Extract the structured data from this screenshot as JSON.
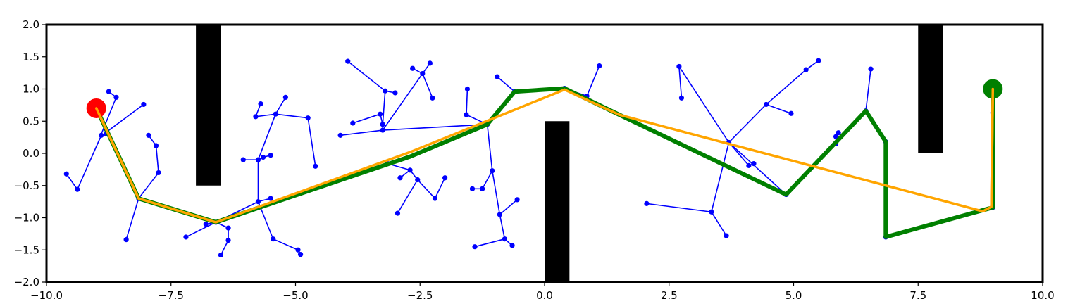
{
  "chart_data": {
    "type": "scatter",
    "title": "",
    "xlabel": "",
    "ylabel": "",
    "xlim": [
      -10,
      10
    ],
    "ylim": [
      -2,
      2
    ],
    "grid": false,
    "x_ticks": [
      "−10.0",
      "−7.5",
      "−5.0",
      "−2.5",
      "0.0",
      "2.5",
      "5.0",
      "7.5",
      "10.0"
    ],
    "x_tick_values": [
      -10,
      -7.5,
      -5,
      -2.5,
      0,
      2.5,
      5,
      7.5,
      10
    ],
    "y_ticks": [
      "2.0",
      "1.5",
      "1.0",
      "0.5",
      "0.0",
      "−0.5",
      "−1.0",
      "−1.5",
      "−2.0"
    ],
    "y_tick_values": [
      2,
      1.5,
      1,
      0.5,
      0,
      -0.5,
      -1,
      -1.5,
      -2
    ],
    "obstacles": [
      {
        "x": [
          -7.0,
          -6.5
        ],
        "y": [
          -0.5,
          2.0
        ]
      },
      {
        "x": [
          0.0,
          0.5
        ],
        "y": [
          -2.0,
          0.5
        ]
      },
      {
        "x": [
          7.5,
          8.0
        ],
        "y": [
          0.0,
          2.0
        ]
      }
    ],
    "start": {
      "x": -9.0,
      "y": 0.7,
      "color": "#ff0000"
    },
    "goal": {
      "x": 9.0,
      "y": 1.0,
      "color": "#008000"
    },
    "tree": {
      "color": "#0000ff",
      "edges": [
        [
          [
            -9.0,
            0.7
          ],
          [
            -8.8,
            0.3
          ]
        ],
        [
          [
            -9.0,
            0.7
          ],
          [
            -8.15,
            -0.7
          ]
        ],
        [
          [
            -8.85,
            0.3
          ],
          [
            -8.05,
            0.76
          ]
        ],
        [
          [
            -8.85,
            0.3
          ],
          [
            -8.9,
            0.28
          ]
        ],
        [
          [
            -8.9,
            0.28
          ],
          [
            -9.38,
            -0.56
          ]
        ],
        [
          [
            -9.38,
            -0.56
          ],
          [
            -9.6,
            -0.32
          ]
        ],
        [
          [
            -8.9,
            0.3
          ],
          [
            -8.6,
            0.87
          ]
        ],
        [
          [
            -8.6,
            0.87
          ],
          [
            -8.75,
            0.96
          ]
        ],
        [
          [
            -8.15,
            -0.7
          ],
          [
            -7.75,
            -0.3
          ]
        ],
        [
          [
            -7.75,
            -0.3
          ],
          [
            -7.8,
            0.12
          ]
        ],
        [
          [
            -7.8,
            0.12
          ],
          [
            -7.95,
            0.28
          ]
        ],
        [
          [
            -8.15,
            -0.7
          ],
          [
            -8.4,
            -1.34
          ]
        ],
        [
          [
            -8.15,
            -0.7
          ],
          [
            -6.6,
            -1.07
          ]
        ],
        [
          [
            -6.6,
            -1.07
          ],
          [
            -6.8,
            -1.1
          ]
        ],
        [
          [
            -6.6,
            -1.07
          ],
          [
            -7.2,
            -1.3
          ]
        ],
        [
          [
            -6.6,
            -1.07
          ],
          [
            -6.35,
            -1.16
          ]
        ],
        [
          [
            -6.35,
            -1.16
          ],
          [
            -6.35,
            -1.35
          ]
        ],
        [
          [
            -6.35,
            -1.35
          ],
          [
            -6.5,
            -1.58
          ]
        ],
        [
          [
            -6.6,
            -1.07
          ],
          [
            -5.75,
            -0.75
          ]
        ],
        [
          [
            -5.75,
            -0.75
          ],
          [
            -5.75,
            -0.1
          ]
        ],
        [
          [
            -5.75,
            -0.1
          ],
          [
            -6.05,
            -0.1
          ]
        ],
        [
          [
            -5.75,
            -0.1
          ],
          [
            -5.65,
            -0.06
          ]
        ],
        [
          [
            -5.65,
            -0.06
          ],
          [
            -5.5,
            -0.03
          ]
        ],
        [
          [
            -5.75,
            -0.75
          ],
          [
            -5.45,
            -1.33
          ]
        ],
        [
          [
            -5.45,
            -1.33
          ],
          [
            -4.95,
            -1.5
          ]
        ],
        [
          [
            -4.95,
            -1.5
          ],
          [
            -4.9,
            -1.57
          ]
        ],
        [
          [
            -5.75,
            -0.75
          ],
          [
            -5.5,
            -0.7
          ]
        ],
        [
          [
            -5.75,
            -0.1
          ],
          [
            -5.4,
            0.61
          ]
        ],
        [
          [
            -5.4,
            0.61
          ],
          [
            -5.8,
            0.57
          ]
        ],
        [
          [
            -5.8,
            0.57
          ],
          [
            -5.7,
            0.77
          ]
        ],
        [
          [
            -5.4,
            0.61
          ],
          [
            -5.2,
            0.87
          ]
        ],
        [
          [
            -5.4,
            0.61
          ],
          [
            -4.75,
            0.55
          ]
        ],
        [
          [
            -4.75,
            0.55
          ],
          [
            -4.6,
            -0.2
          ]
        ],
        [
          [
            -3.25,
            0.36
          ],
          [
            -4.1,
            0.28
          ]
        ],
        [
          [
            -3.25,
            0.36
          ],
          [
            -3.25,
            0.45
          ]
        ],
        [
          [
            -3.25,
            0.45
          ],
          [
            -3.3,
            0.61
          ]
        ],
        [
          [
            -3.3,
            0.61
          ],
          [
            -3.85,
            0.47
          ]
        ],
        [
          [
            -3.25,
            0.45
          ],
          [
            -3.2,
            0.97
          ]
        ],
        [
          [
            -3.2,
            0.97
          ],
          [
            -3.95,
            1.43
          ]
        ],
        [
          [
            -3.2,
            0.97
          ],
          [
            -3.0,
            0.94
          ]
        ],
        [
          [
            -3.25,
            0.36
          ],
          [
            -2.45,
            1.24
          ]
        ],
        [
          [
            -2.45,
            1.24
          ],
          [
            -2.65,
            1.32
          ]
        ],
        [
          [
            -2.45,
            1.24
          ],
          [
            -2.3,
            1.4
          ]
        ],
        [
          [
            -2.45,
            1.24
          ],
          [
            -2.25,
            0.86
          ]
        ],
        [
          [
            -3.25,
            0.36
          ],
          [
            -1.15,
            0.45
          ]
        ],
        [
          [
            -1.15,
            0.45
          ],
          [
            -1.57,
            0.6
          ]
        ],
        [
          [
            -1.57,
            0.6
          ],
          [
            -1.55,
            1.0
          ]
        ],
        [
          [
            -1.15,
            0.45
          ],
          [
            -1.05,
            -0.27
          ]
        ],
        [
          [
            -1.05,
            -0.27
          ],
          [
            -1.25,
            -0.55
          ]
        ],
        [
          [
            -1.25,
            -0.55
          ],
          [
            -1.45,
            -0.55
          ]
        ],
        [
          [
            -1.05,
            -0.27
          ],
          [
            -0.9,
            -0.95
          ]
        ],
        [
          [
            -0.9,
            -0.95
          ],
          [
            -0.55,
            -0.72
          ]
        ],
        [
          [
            -0.9,
            -0.95
          ],
          [
            -0.8,
            -1.33
          ]
        ],
        [
          [
            -0.8,
            -1.33
          ],
          [
            -0.65,
            -1.43
          ]
        ],
        [
          [
            -0.8,
            -1.33
          ],
          [
            -1.4,
            -1.45
          ]
        ],
        [
          [
            -0.6,
            0.96
          ],
          [
            -0.95,
            1.19
          ]
        ],
        [
          [
            -2.7,
            -0.26
          ],
          [
            -3.15,
            -0.16
          ]
        ],
        [
          [
            -2.7,
            -0.26
          ],
          [
            -2.9,
            -0.38
          ]
        ],
        [
          [
            -2.7,
            -0.26
          ],
          [
            -2.55,
            -0.41
          ]
        ],
        [
          [
            -2.55,
            -0.41
          ],
          [
            -2.95,
            -0.93
          ]
        ],
        [
          [
            -2.55,
            -0.41
          ],
          [
            -2.2,
            -0.7
          ]
        ],
        [
          [
            -2.2,
            -0.7
          ],
          [
            -2.0,
            -0.38
          ]
        ],
        [
          [
            0.4,
            1.01
          ],
          [
            0.85,
            0.89
          ]
        ],
        [
          [
            0.85,
            0.89
          ],
          [
            1.1,
            1.36
          ]
        ],
        [
          [
            4.85,
            -0.64
          ],
          [
            3.7,
            0.17
          ]
        ],
        [
          [
            3.7,
            0.17
          ],
          [
            2.7,
            1.35
          ]
        ],
        [
          [
            2.7,
            1.35
          ],
          [
            2.75,
            0.86
          ]
        ],
        [
          [
            3.7,
            0.17
          ],
          [
            4.1,
            -0.19
          ]
        ],
        [
          [
            4.1,
            -0.19
          ],
          [
            4.2,
            -0.16
          ]
        ],
        [
          [
            3.7,
            0.17
          ],
          [
            4.45,
            0.76
          ]
        ],
        [
          [
            4.45,
            0.76
          ],
          [
            4.95,
            0.62
          ]
        ],
        [
          [
            4.45,
            0.76
          ],
          [
            5.25,
            1.3
          ]
        ],
        [
          [
            5.25,
            1.3
          ],
          [
            5.5,
            1.44
          ]
        ],
        [
          [
            3.7,
            0.17
          ],
          [
            3.35,
            -0.91
          ]
        ],
        [
          [
            3.35,
            -0.91
          ],
          [
            2.05,
            -0.78
          ]
        ],
        [
          [
            3.35,
            -0.91
          ],
          [
            3.65,
            -1.28
          ]
        ],
        [
          [
            6.45,
            0.66
          ],
          [
            5.85,
            0.15
          ]
        ],
        [
          [
            5.85,
            0.15
          ],
          [
            5.85,
            0.26
          ]
        ],
        [
          [
            5.85,
            0.26
          ],
          [
            5.9,
            0.32
          ]
        ],
        [
          [
            6.45,
            0.66
          ],
          [
            6.55,
            1.31
          ]
        ],
        [
          [
            9.0,
            -0.84
          ],
          [
            9.0,
            0.63
          ]
        ]
      ],
      "nodes": [
        [
          -8.8,
          0.3
        ],
        [
          -8.9,
          0.28
        ],
        [
          -8.05,
          0.76
        ],
        [
          -9.38,
          -0.56
        ],
        [
          -9.6,
          -0.32
        ],
        [
          -8.6,
          0.87
        ],
        [
          -8.75,
          0.96
        ],
        [
          -8.15,
          -0.7
        ],
        [
          -7.75,
          -0.3
        ],
        [
          -7.8,
          0.12
        ],
        [
          -7.95,
          0.28
        ],
        [
          -8.4,
          -1.34
        ],
        [
          -6.6,
          -1.07
        ],
        [
          -6.8,
          -1.1
        ],
        [
          -7.2,
          -1.3
        ],
        [
          -6.35,
          -1.16
        ],
        [
          -6.35,
          -1.35
        ],
        [
          -6.5,
          -1.58
        ],
        [
          -5.75,
          -0.75
        ],
        [
          -5.75,
          -0.1
        ],
        [
          -6.05,
          -0.1
        ],
        [
          -5.65,
          -0.06
        ],
        [
          -5.5,
          -0.03
        ],
        [
          -5.45,
          -1.33
        ],
        [
          -4.95,
          -1.5
        ],
        [
          -4.9,
          -1.57
        ],
        [
          -5.5,
          -0.7
        ],
        [
          -5.4,
          0.61
        ],
        [
          -5.8,
          0.57
        ],
        [
          -5.7,
          0.77
        ],
        [
          -5.2,
          0.87
        ],
        [
          -4.75,
          0.55
        ],
        [
          -4.6,
          -0.2
        ],
        [
          -4.1,
          0.28
        ],
        [
          -3.25,
          0.36
        ],
        [
          -3.25,
          0.45
        ],
        [
          -3.3,
          0.61
        ],
        [
          -3.85,
          0.47
        ],
        [
          -3.2,
          0.97
        ],
        [
          -3.95,
          1.43
        ],
        [
          -3.0,
          0.94
        ],
        [
          -2.45,
          1.24
        ],
        [
          -2.65,
          1.32
        ],
        [
          -2.3,
          1.4
        ],
        [
          -2.25,
          0.86
        ],
        [
          -1.15,
          0.45
        ],
        [
          -1.57,
          0.6
        ],
        [
          -1.55,
          1.0
        ],
        [
          -1.05,
          -0.27
        ],
        [
          -1.25,
          -0.55
        ],
        [
          -1.45,
          -0.55
        ],
        [
          -0.9,
          -0.95
        ],
        [
          -0.55,
          -0.72
        ],
        [
          -0.8,
          -1.33
        ],
        [
          -0.65,
          -1.43
        ],
        [
          -1.4,
          -1.45
        ],
        [
          -0.6,
          0.96
        ],
        [
          -0.95,
          1.19
        ],
        [
          -2.7,
          -0.26
        ],
        [
          -3.15,
          -0.16
        ],
        [
          -2.9,
          -0.38
        ],
        [
          -2.55,
          -0.41
        ],
        [
          -2.95,
          -0.93
        ],
        [
          -2.2,
          -0.7
        ],
        [
          -2.0,
          -0.38
        ],
        [
          0.4,
          1.01
        ],
        [
          0.85,
          0.89
        ],
        [
          1.1,
          1.36
        ],
        [
          4.85,
          -0.64
        ],
        [
          3.7,
          0.17
        ],
        [
          2.7,
          1.35
        ],
        [
          2.75,
          0.86
        ],
        [
          4.1,
          -0.19
        ],
        [
          4.2,
          -0.16
        ],
        [
          4.45,
          0.76
        ],
        [
          4.95,
          0.62
        ],
        [
          5.25,
          1.3
        ],
        [
          5.5,
          1.44
        ],
        [
          3.35,
          -0.91
        ],
        [
          2.05,
          -0.78
        ],
        [
          3.65,
          -1.28
        ],
        [
          6.45,
          0.66
        ],
        [
          5.85,
          0.15
        ],
        [
          5.85,
          0.26
        ],
        [
          5.9,
          0.32
        ],
        [
          6.55,
          1.31
        ],
        [
          6.85,
          0.18
        ],
        [
          6.85,
          -1.3
        ],
        [
          9.0,
          -0.84
        ],
        [
          9.0,
          0.63
        ]
      ]
    },
    "path": {
      "color": "#008000",
      "points": [
        [
          -9.0,
          0.7
        ],
        [
          -8.15,
          -0.7
        ],
        [
          -6.6,
          -1.07
        ],
        [
          -2.7,
          -0.05
        ],
        [
          -1.15,
          0.45
        ],
        [
          -0.6,
          0.96
        ],
        [
          0.4,
          1.01
        ],
        [
          1.5,
          0.6
        ],
        [
          4.85,
          -0.64
        ],
        [
          6.45,
          0.66
        ],
        [
          6.85,
          0.18
        ],
        [
          6.85,
          -1.3
        ],
        [
          9.0,
          -0.84
        ],
        [
          9.0,
          1.0
        ]
      ]
    },
    "smoothed_path": {
      "color": "#ffa500",
      "points": [
        [
          -9.0,
          0.7
        ],
        [
          -8.15,
          -0.7
        ],
        [
          -6.6,
          -1.07
        ],
        [
          -2.7,
          0.02
        ],
        [
          0.4,
          0.99
        ],
        [
          1.5,
          0.6
        ],
        [
          8.8,
          -0.9
        ],
        [
          8.97,
          -0.83
        ],
        [
          9.0,
          1.0
        ]
      ]
    }
  }
}
